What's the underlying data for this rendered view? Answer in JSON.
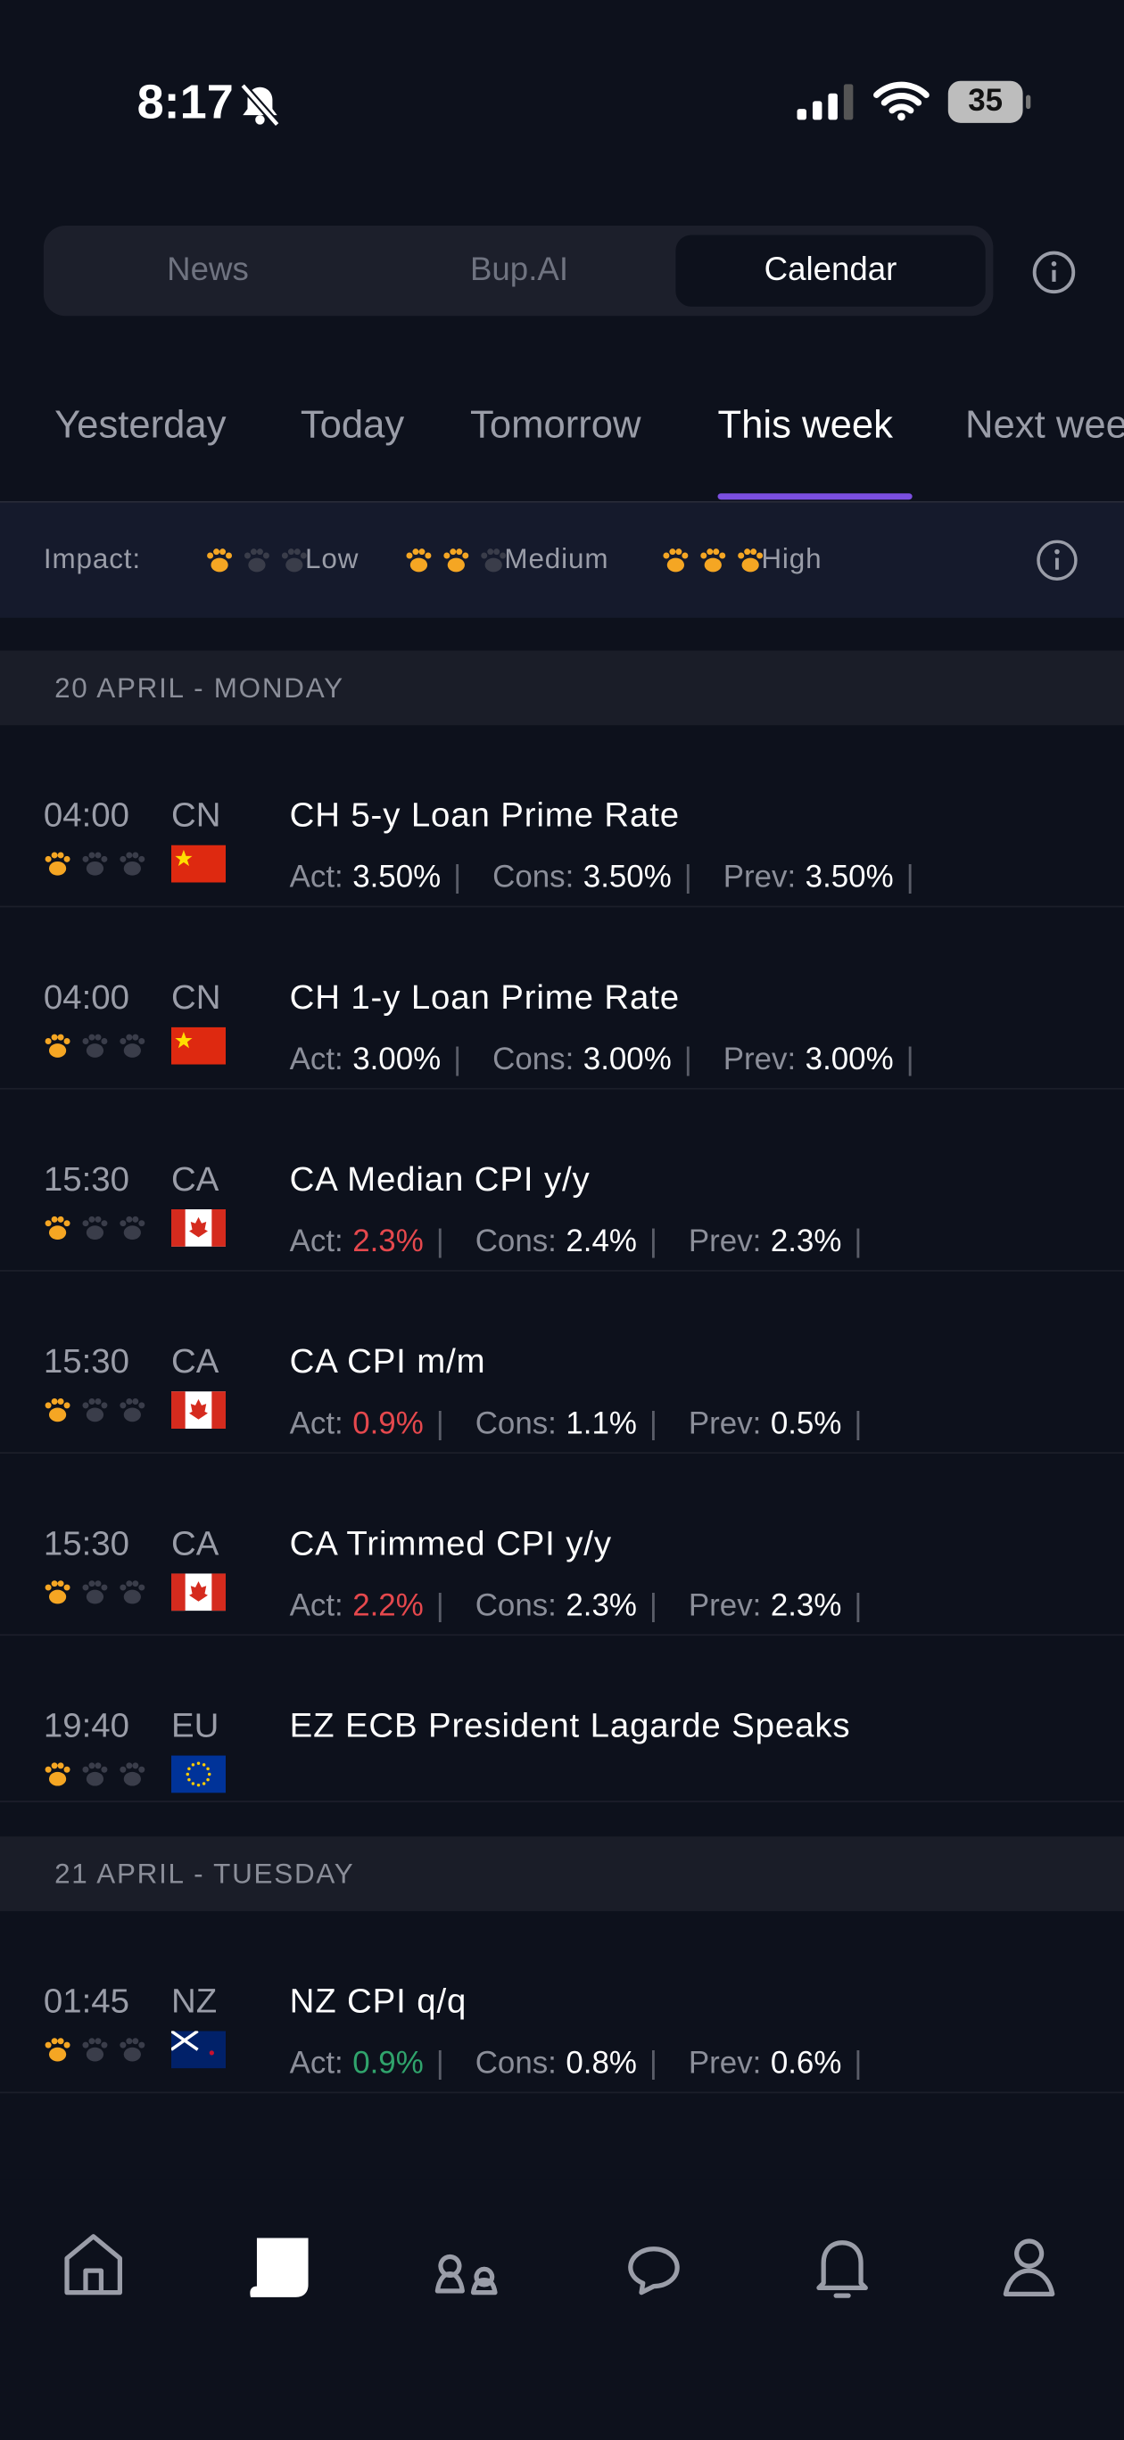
{
  "status": {
    "time": "8:17",
    "battery": "35"
  },
  "segments": {
    "items": [
      "News",
      "Bup.AI",
      "Calendar"
    ],
    "selected": 2
  },
  "day_tabs": {
    "items": [
      "Yesterday",
      "Today",
      "Tomorrow",
      "This week",
      "Next week"
    ],
    "selected": 3
  },
  "impact_legend": {
    "label": "Impact:",
    "levels": [
      {
        "label": "Low",
        "paws": 1
      },
      {
        "label": "Medium",
        "paws": 2
      },
      {
        "label": "High",
        "paws": 3
      }
    ]
  },
  "stat_labels": {
    "act": "Act:",
    "cons": "Cons:",
    "prev": "Prev:",
    "sep": "|"
  },
  "sections": [
    {
      "title": "20 APRIL - MONDAY",
      "events": [
        {
          "time": "04:00",
          "country": "CN",
          "impact": 1,
          "title": "CH 5-y Loan Prime Rate",
          "act": "3.50%",
          "cons": "3.50%",
          "prev": "3.50%",
          "act_trend": "neutral"
        },
        {
          "time": "04:00",
          "country": "CN",
          "impact": 1,
          "title": "CH 1-y Loan Prime Rate",
          "act": "3.00%",
          "cons": "3.00%",
          "prev": "3.00%",
          "act_trend": "neutral"
        },
        {
          "time": "15:30",
          "country": "CA",
          "impact": 1,
          "title": "CA Median CPI y/y",
          "act": "2.3%",
          "cons": "2.4%",
          "prev": "2.3%",
          "act_trend": "down"
        },
        {
          "time": "15:30",
          "country": "CA",
          "impact": 1,
          "title": "CA CPI m/m",
          "act": "0.9%",
          "cons": "1.1%",
          "prev": "0.5%",
          "act_trend": "down"
        },
        {
          "time": "15:30",
          "country": "CA",
          "impact": 1,
          "title": "CA Trimmed CPI y/y",
          "act": "2.2%",
          "cons": "2.3%",
          "prev": "2.3%",
          "act_trend": "down"
        },
        {
          "time": "19:40",
          "country": "EU",
          "impact": 1,
          "title": "EZ ECB President Lagarde Speaks"
        }
      ]
    },
    {
      "title": "21 APRIL - TUESDAY",
      "events": [
        {
          "time": "01:45",
          "country": "NZ",
          "impact": 1,
          "title": "NZ CPI q/q",
          "act": "0.9%",
          "cons": "0.8%",
          "prev": "0.6%",
          "act_trend": "up"
        }
      ]
    }
  ]
}
